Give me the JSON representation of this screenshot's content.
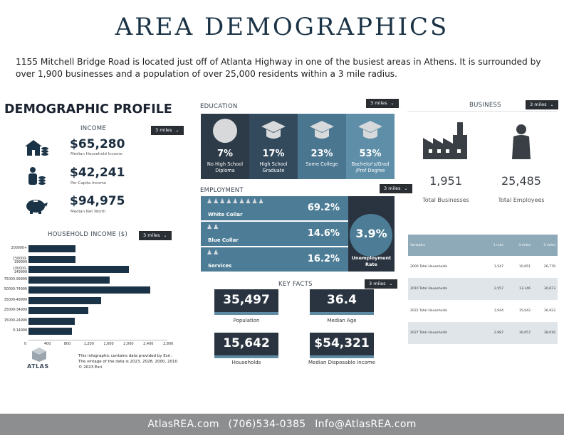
{
  "header": {
    "title": "AREA DEMOGRAPHICS",
    "intro_line1": "1155 Mitchell Bridge Road is located just off of Atlanta Highway in one of the busiest areas in Athens.  It is surrounded by",
    "intro_line2": "over 1,900 businesses and a population of over 25,000 residents within a 3 mile radius."
  },
  "profile": {
    "heading": "DEMOGRAPHIC PROFILE",
    "income": {
      "heading": "INCOME",
      "radius": "3 miles",
      "items": [
        {
          "value": "$65,280",
          "label": "Median Household Income",
          "icon": "house-coins-icon"
        },
        {
          "value": "$42,241",
          "label": "Per Capita Income",
          "icon": "person-coins-icon"
        },
        {
          "value": "$94,975",
          "label": "Median Net Worth",
          "icon": "piggy-bank-icon"
        }
      ]
    },
    "household_income_heading": "HOUSEHOLD INCOME ($)",
    "household_income_radius": "3 miles",
    "source_note_1": "This infographic contains data provided by Esri.",
    "source_note_2": "The vintage of the data is 2023, 2028, 2000, 2010",
    "copyright": "© 2023 Esri",
    "logo_text": "ATLAS"
  },
  "chart_data": {
    "type": "bar",
    "orientation": "horizontal",
    "categories": [
      "200000+",
      "150000-199999",
      "100000-149999",
      "75000-99999",
      "50000-74999",
      "35000-49999",
      "25000-34999",
      "15000-24999",
      "0-14999"
    ],
    "values": [
      950,
      950,
      2030,
      1630,
      2460,
      1470,
      1200,
      930,
      870
    ],
    "xlim": [
      0,
      2800
    ],
    "x_ticks": [
      "0",
      "400",
      "800",
      "1,200",
      "1,600",
      "2,000",
      "2,400",
      "2,800"
    ],
    "color": "#1b3346"
  },
  "education": {
    "heading": "EDUCATION",
    "radius": "3 miles",
    "tiles": [
      {
        "pct": "7%",
        "label1": "No High School",
        "label2": "Diploma",
        "color": "#2d3a47",
        "icon": "circle-icon"
      },
      {
        "pct": "17%",
        "label1": "High School",
        "label2": "Graduate",
        "color": "#334a5d",
        "icon": "graduation-cap-icon"
      },
      {
        "pct": "23%",
        "label1": "Some College",
        "label2": "",
        "color": "#4a7690",
        "icon": "graduation-cap-icon"
      },
      {
        "pct": "53%",
        "label1": "Bachelor's/Grad",
        "label2": "/Prof Degree",
        "color": "#5f8ea8",
        "icon": "graduation-cap-icon"
      }
    ]
  },
  "employment": {
    "heading": "EMPLOYMENT",
    "radius": "3 miles",
    "rows": [
      {
        "label": "White Collar",
        "pct": "69.2%",
        "icon": "people-icon"
      },
      {
        "label": "Blue Collar",
        "pct": "14.6%",
        "icon": "people-icon"
      },
      {
        "label": "Services",
        "pct": "16.2%",
        "icon": "people-icon"
      }
    ],
    "unemployment_value": "3.9%",
    "unemployment_label1": "Unemployment",
    "unemployment_label2": "Rate"
  },
  "key_facts": {
    "heading": "KEY FACTS",
    "radius": "3 miles",
    "facts": [
      {
        "value": "35,497",
        "label": "Population"
      },
      {
        "value": "36.4",
        "label": "Median Age"
      },
      {
        "value": "15,642",
        "label": "Households"
      },
      {
        "value": "$54,321",
        "label": "Median Disposable Income"
      }
    ]
  },
  "business": {
    "heading": "BUSINESS",
    "radius": "3 miles",
    "total_businesses": "1,951",
    "total_businesses_label": "Total Businesses",
    "total_employees": "25,485",
    "total_employees_label": "Total Employees"
  },
  "households_table": {
    "columns": [
      "Variables",
      "1 mile",
      "3 miles",
      "5 miles"
    ],
    "rows": [
      [
        "2000 Total Households",
        "1,547",
        "10,651",
        "26,776"
      ],
      [
        "2010 Total Households",
        "2,557",
        "13,146",
        "30,873"
      ],
      [
        "2022 Total Households",
        "2,944",
        "15,642",
        "36,922"
      ],
      [
        "2027 Total Households",
        "2,987",
        "16,057",
        "38,016"
      ]
    ]
  },
  "footer": {
    "website": "AtlasREA.com",
    "phone": "(706)534-0385",
    "email": "Info@AtlasREA.com"
  }
}
